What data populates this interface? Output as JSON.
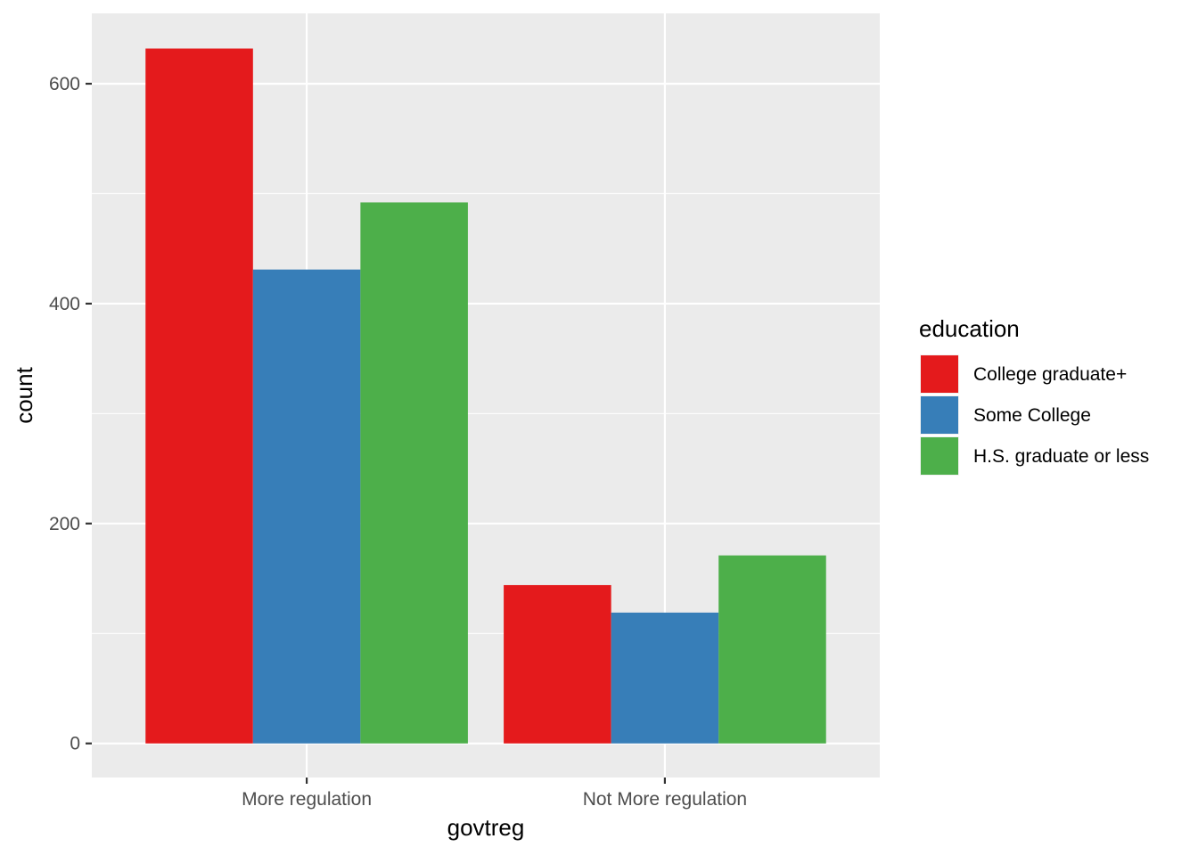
{
  "chart_data": {
    "type": "bar",
    "categories": [
      "More regulation",
      "Not More regulation"
    ],
    "series": [
      {
        "name": "College graduate+",
        "values": [
          632,
          144
        ],
        "color": "#E41A1C"
      },
      {
        "name": "Some College",
        "values": [
          431,
          119
        ],
        "color": "#377EB8"
      },
      {
        "name": "H.S. graduate or less",
        "values": [
          492,
          171
        ],
        "color": "#4DAF4A"
      }
    ],
    "xlabel": "govtreg",
    "ylabel": "count",
    "ylim": [
      -31,
      664
    ],
    "yticks": [
      0,
      200,
      400,
      600
    ],
    "legend_title": "education",
    "legend_position": "right",
    "grid": true,
    "panel_background": "#EBEBEB"
  }
}
